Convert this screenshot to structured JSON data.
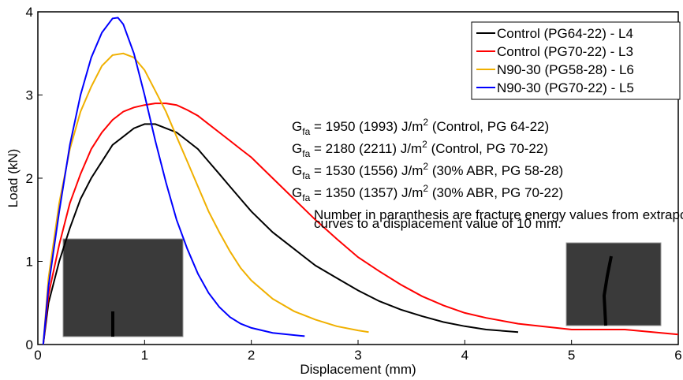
{
  "chart_data": {
    "type": "line",
    "xlabel": "Displacement (mm)",
    "ylabel": "Load (kN)",
    "xlim": [
      0,
      6
    ],
    "ylim": [
      0,
      4
    ],
    "xticks": [
      0,
      1,
      2,
      3,
      4,
      5,
      6
    ],
    "yticks": [
      0,
      1,
      2,
      3,
      4
    ],
    "grid": false,
    "legend": "upper right",
    "series": [
      {
        "name": "Control (PG64-22) - L4",
        "color": "#000000",
        "x": [
          0.05,
          0.1,
          0.2,
          0.3,
          0.4,
          0.5,
          0.6,
          0.7,
          0.8,
          0.9,
          1.0,
          1.1,
          1.2,
          1.3,
          1.4,
          1.5,
          1.6,
          1.7,
          1.8,
          1.9,
          2.0,
          2.2,
          2.4,
          2.6,
          2.8,
          3.0,
          3.2,
          3.4,
          3.6,
          3.8,
          4.0,
          4.2,
          4.5
        ],
        "values": [
          0,
          0.5,
          1.0,
          1.4,
          1.75,
          2.0,
          2.2,
          2.4,
          2.5,
          2.6,
          2.65,
          2.65,
          2.6,
          2.55,
          2.45,
          2.35,
          2.2,
          2.05,
          1.9,
          1.75,
          1.6,
          1.35,
          1.15,
          0.95,
          0.8,
          0.65,
          0.52,
          0.42,
          0.34,
          0.27,
          0.22,
          0.18,
          0.15
        ]
      },
      {
        "name": "Control (PG70-22) - L3",
        "color": "#ff0000",
        "x": [
          0.05,
          0.1,
          0.2,
          0.3,
          0.4,
          0.5,
          0.6,
          0.7,
          0.8,
          0.9,
          1.0,
          1.1,
          1.2,
          1.3,
          1.4,
          1.5,
          1.6,
          1.7,
          1.8,
          1.9,
          2.0,
          2.2,
          2.4,
          2.6,
          2.8,
          3.0,
          3.2,
          3.4,
          3.6,
          3.8,
          4.0,
          4.2,
          4.5,
          5.0,
          5.5,
          6.0
        ],
        "values": [
          0,
          0.6,
          1.2,
          1.7,
          2.05,
          2.35,
          2.55,
          2.7,
          2.8,
          2.85,
          2.88,
          2.9,
          2.9,
          2.88,
          2.82,
          2.75,
          2.65,
          2.55,
          2.45,
          2.35,
          2.25,
          2.0,
          1.75,
          1.5,
          1.27,
          1.05,
          0.88,
          0.72,
          0.58,
          0.47,
          0.38,
          0.32,
          0.25,
          0.18,
          0.18,
          0.12
        ]
      },
      {
        "name": "N90-30 (PG58-28) - L6",
        "color": "#f0b000",
        "x": [
          0.05,
          0.1,
          0.2,
          0.3,
          0.4,
          0.5,
          0.6,
          0.7,
          0.8,
          0.9,
          1.0,
          1.1,
          1.2,
          1.3,
          1.4,
          1.5,
          1.6,
          1.7,
          1.8,
          1.9,
          2.0,
          2.2,
          2.4,
          2.6,
          2.8,
          3.0,
          3.1
        ],
        "values": [
          0,
          0.8,
          1.7,
          2.35,
          2.8,
          3.1,
          3.35,
          3.48,
          3.5,
          3.45,
          3.3,
          3.05,
          2.8,
          2.5,
          2.2,
          1.9,
          1.6,
          1.35,
          1.12,
          0.92,
          0.77,
          0.55,
          0.4,
          0.3,
          0.22,
          0.17,
          0.15
        ]
      },
      {
        "name": "N90-30 (PG70-22) - L5",
        "color": "#0000ff",
        "x": [
          0.05,
          0.1,
          0.2,
          0.3,
          0.4,
          0.5,
          0.6,
          0.7,
          0.75,
          0.8,
          0.9,
          1.0,
          1.1,
          1.2,
          1.3,
          1.4,
          1.5,
          1.6,
          1.7,
          1.8,
          1.9,
          2.0,
          2.2,
          2.5
        ],
        "values": [
          0,
          0.7,
          1.6,
          2.4,
          3.0,
          3.45,
          3.75,
          3.92,
          3.93,
          3.85,
          3.5,
          3.0,
          2.45,
          1.95,
          1.5,
          1.15,
          0.85,
          0.62,
          0.45,
          0.33,
          0.25,
          0.2,
          0.14,
          0.1
        ]
      }
    ],
    "annotations": [
      {
        "symbol": "G",
        "subscript": "fa",
        "text": " = 1950 (1993) J/m",
        "superscript": "2",
        "note": " (Control, PG 64-22)"
      },
      {
        "symbol": "G",
        "subscript": "fa",
        "text": " = 2180 (2211) J/m",
        "superscript": "2",
        "note": " (Control, PG 70-22)"
      },
      {
        "symbol": "G",
        "subscript": "fa",
        "text": " = 1530 (1556) J/m",
        "superscript": "2",
        "note": " (30% ABR, PG 58-28)"
      },
      {
        "symbol": "G",
        "subscript": "fa",
        "text": " = 1350 (1357) J/m",
        "superscript": "2",
        "note": " (30% ABR, PG 70-22)"
      }
    ],
    "footnote": [
      "Number in paranthesis are fracture energy values from extrapolated load-disp",
      "curves to a displacement value of 10 mm."
    ]
  }
}
